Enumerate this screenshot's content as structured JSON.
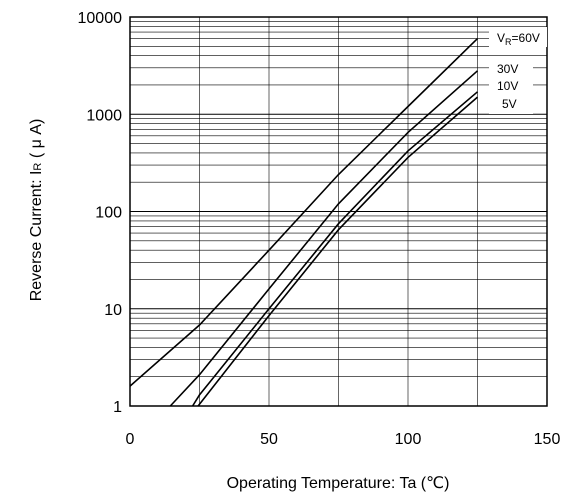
{
  "chart_data": {
    "type": "line",
    "title": "",
    "xlabel": "Operating Temperature: Ta (℃)",
    "ylabel_main": "Reverse Current: I",
    "ylabel_sub": "R",
    "ylabel_tail": " ( μ A)",
    "xlim": [
      0,
      150
    ],
    "ylim": [
      1,
      10000
    ],
    "yscale": "log",
    "grid": true,
    "x_ticks": [
      {
        "value": 0,
        "label": "0"
      },
      {
        "value": 50,
        "label": "50"
      },
      {
        "value": 100,
        "label": "100"
      },
      {
        "value": 150,
        "label": "150"
      }
    ],
    "y_ticks": [
      {
        "value": 1,
        "label": "1"
      },
      {
        "value": 10,
        "label": "10"
      },
      {
        "value": 100,
        "label": "100"
      },
      {
        "value": 1000,
        "label": "1000"
      },
      {
        "value": 10000,
        "label": "10000"
      }
    ],
    "series": [
      {
        "label_main": "V",
        "label_sub": "R",
        "label_tail": "=60V",
        "x": [
          0,
          25,
          50,
          75,
          100,
          125
        ],
        "y": [
          1.6,
          6.8,
          40,
          240,
          1200,
          6000
        ]
      },
      {
        "label": "30V",
        "x": [
          14.5,
          25,
          50,
          75,
          100,
          125
        ],
        "y": [
          1.0,
          2.1,
          16,
          120,
          650,
          2800
        ]
      },
      {
        "label": "10V",
        "x": [
          22.5,
          25,
          50,
          75,
          100,
          125
        ],
        "y": [
          1.0,
          1.3,
          10,
          75,
          420,
          1700
        ]
      },
      {
        "label": "5V",
        "x": [
          24.5,
          50,
          75,
          100,
          125
        ],
        "y": [
          1.0,
          8.5,
          65,
          360,
          1500
        ]
      }
    ]
  }
}
